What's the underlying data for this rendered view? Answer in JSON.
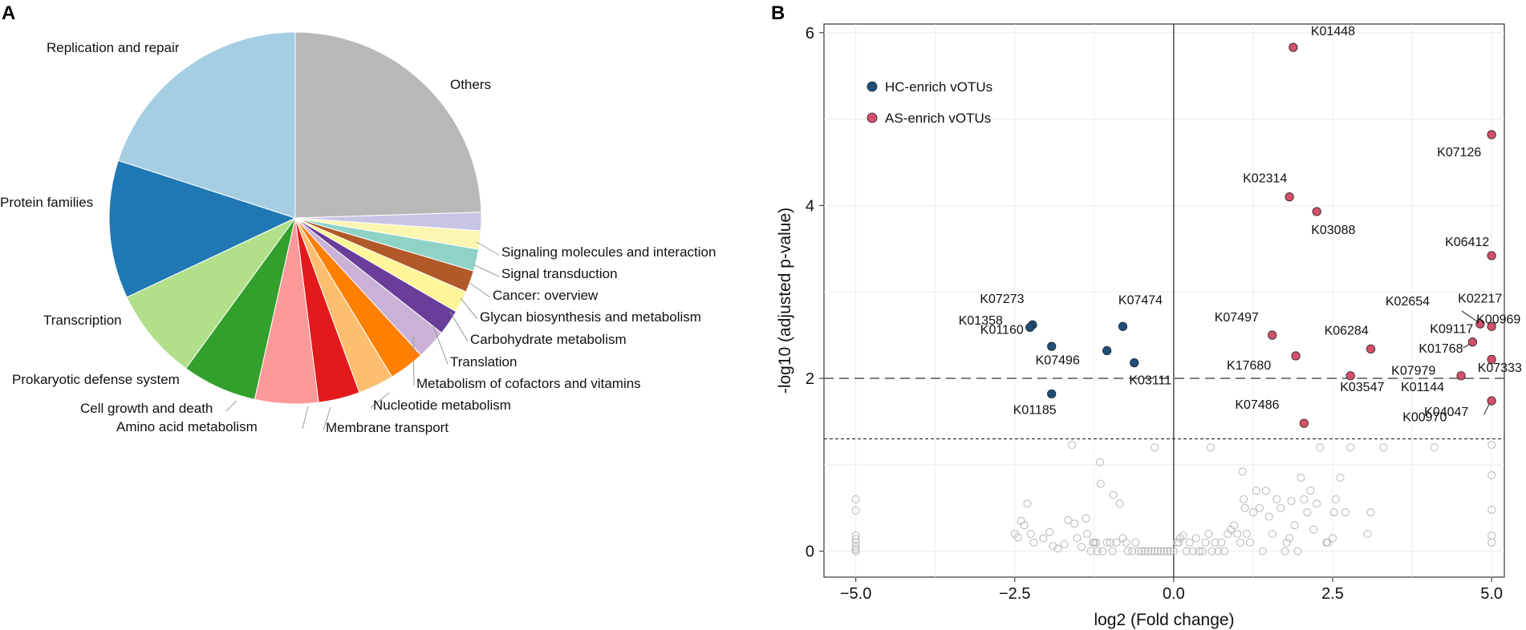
{
  "panel_a_letter": "A",
  "panel_b_letter": "B",
  "chart_data": [
    {
      "type": "pie",
      "panel": "A",
      "slices": [
        {
          "label": "Others",
          "value": 24.5,
          "color": "#b8b8b8"
        },
        {
          "label": "Signaling molecules and interaction",
          "value": 1.6,
          "color": "#c8c4e4"
        },
        {
          "label": "Signal transduction",
          "value": 1.6,
          "color": "#fbf6b0"
        },
        {
          "label": "Cancer: overview",
          "value": 1.9,
          "color": "#8fd3c7"
        },
        {
          "label": "Glycan biosynthesis and metabolism",
          "value": 1.9,
          "color": "#b15928"
        },
        {
          "label": "Carbohydrate metabolism",
          "value": 1.9,
          "color": "#fff599"
        },
        {
          "label": "Translation",
          "value": 2.2,
          "color": "#6a3d9a"
        },
        {
          "label": "Metabolism of cofactors and vitamins",
          "value": 2.6,
          "color": "#cab2d6"
        },
        {
          "label": "Nucleotide metabolism",
          "value": 3.1,
          "color": "#ff7f00"
        },
        {
          "label": "Membrane transport",
          "value": 3.1,
          "color": "#fdbf6f"
        },
        {
          "label": "Amino acid metabolism",
          "value": 3.6,
          "color": "#e31a1c"
        },
        {
          "label": "Cell growth and death",
          "value": 5.5,
          "color": "#fb9a99"
        },
        {
          "label": "Prokaryotic defense system",
          "value": 6.5,
          "color": "#33a02c"
        },
        {
          "label": "Transcription",
          "value": 8.0,
          "color": "#b2df8a"
        },
        {
          "label": "Protein families",
          "value": 12.0,
          "color": "#1f78b4"
        },
        {
          "label": "Replication and repair",
          "value": 20.0,
          "color": "#a6cee3"
        }
      ]
    },
    {
      "type": "scatter",
      "panel": "B",
      "xlabel": "log2 (Fold change)",
      "ylabel": "-log10 (adjusted p-value)",
      "xlim": [
        -5.5,
        5.2
      ],
      "ylim": [
        -0.3,
        6.1
      ],
      "xticks": [
        -5.0,
        -2.5,
        0.0,
        2.5,
        5.0
      ],
      "xtick_labels": [
        "−5.0",
        "−2.5",
        "0.0",
        "2.5",
        "5.0"
      ],
      "yticks": [
        0,
        2,
        4,
        6
      ],
      "ytick_labels": [
        "0",
        "2",
        "4",
        "6"
      ],
      "hlines": [
        {
          "y": 2.0,
          "style": "long-dash"
        },
        {
          "y": 1.3,
          "style": "short-dash"
        }
      ],
      "vline": 0,
      "legend": [
        {
          "label": "HC-enrich vOTUs",
          "color": "#1f4e79"
        },
        {
          "label": "AS-enrich vOTUs",
          "color": "#d4506a"
        }
      ],
      "hc_points": [
        {
          "id": "K07273",
          "x": -2.22,
          "y": 2.62
        },
        {
          "id": "K01160",
          "x": -2.26,
          "y": 2.59
        },
        {
          "id": "K01358",
          "x": -1.92,
          "y": 2.37
        },
        {
          "id": "K07474",
          "x": -0.8,
          "y": 2.6
        },
        {
          "id": "K07496",
          "x": -1.05,
          "y": 2.32
        },
        {
          "id": "K03111",
          "x": -0.62,
          "y": 2.18
        },
        {
          "id": "K01185",
          "x": -1.92,
          "y": 1.82
        }
      ],
      "as_points": [
        {
          "id": "K01448",
          "x": 1.88,
          "y": 5.83
        },
        {
          "id": "K07126",
          "x": 5.0,
          "y": 4.82
        },
        {
          "id": "K02314",
          "x": 1.82,
          "y": 4.1
        },
        {
          "id": "K03088",
          "x": 2.25,
          "y": 3.93
        },
        {
          "id": "K06412",
          "x": 5.0,
          "y": 3.42
        },
        {
          "id": "K02654",
          "x": 4.82,
          "y": 2.63
        },
        {
          "id": "K02217",
          "x": 5.0,
          "y": 2.6
        },
        {
          "id": "K07497",
          "x": 1.55,
          "y": 2.5
        },
        {
          "id": "K06284",
          "x": 3.1,
          "y": 2.34
        },
        {
          "id": "K01768",
          "x": 4.7,
          "y": 2.42
        },
        {
          "id": "K17680",
          "x": 1.92,
          "y": 2.26
        },
        {
          "id": "K07979",
          "x": 5.0,
          "y": 2.22
        },
        {
          "id": "K03547",
          "x": 2.78,
          "y": 2.03
        },
        {
          "id": "K01144",
          "x": 4.52,
          "y": 2.03
        },
        {
          "id": "K04047",
          "x": 5.0,
          "y": 1.74
        },
        {
          "id": "K07486",
          "x": 2.05,
          "y": 1.48
        }
      ],
      "callout_only_labels": [
        "K09117",
        "K00969",
        "K07333",
        "K00970"
      ],
      "nonsig_points": [
        [
          -5,
          0.6
        ],
        [
          -5,
          0.47
        ],
        [
          -5,
          0.18
        ],
        [
          -5,
          0.14
        ],
        [
          -5,
          0.1
        ],
        [
          -5,
          0.05
        ],
        [
          -5,
          0.02
        ],
        [
          -5,
          0.0
        ],
        [
          -2.5,
          0.2
        ],
        [
          -2.45,
          0.16
        ],
        [
          -2.4,
          0.35
        ],
        [
          -2.35,
          0.3
        ],
        [
          -2.3,
          0.55
        ],
        [
          -2.25,
          0.2
        ],
        [
          -2.2,
          0.1
        ],
        [
          -2.05,
          0.15
        ],
        [
          -1.95,
          0.22
        ],
        [
          -1.9,
          0.06
        ],
        [
          -1.82,
          0.03
        ],
        [
          -1.72,
          0.08
        ],
        [
          -1.66,
          0.36
        ],
        [
          -1.6,
          1.23
        ],
        [
          -1.56,
          0.32
        ],
        [
          -1.52,
          0.15
        ],
        [
          -1.45,
          0.05
        ],
        [
          -1.38,
          0.38
        ],
        [
          -1.36,
          0.2
        ],
        [
          -1.3,
          0.0
        ],
        [
          -1.27,
          0.1
        ],
        [
          -1.25,
          0.1
        ],
        [
          -1.22,
          0.1
        ],
        [
          -1.2,
          0.0
        ],
        [
          -1.16,
          1.03
        ],
        [
          -1.15,
          0.78
        ],
        [
          -1.12,
          0.0
        ],
        [
          -1.05,
          0.1
        ],
        [
          -1.0,
          0.1
        ],
        [
          -0.96,
          0.0
        ],
        [
          -0.9,
          0.1
        ],
        [
          -0.85,
          0.55
        ],
        [
          -0.8,
          0.15
        ],
        [
          -0.75,
          0.1
        ],
        [
          -0.72,
          0.0
        ],
        [
          -0.65,
          0.0
        ],
        [
          -0.6,
          0.1
        ],
        [
          -0.55,
          0.0
        ],
        [
          -0.5,
          0.0
        ],
        [
          -0.45,
          0.0
        ],
        [
          -0.4,
          0.0
        ],
        [
          -0.35,
          0.0
        ],
        [
          -0.3,
          0.0
        ],
        [
          -0.25,
          0.0
        ],
        [
          -0.2,
          0.0
        ],
        [
          -0.15,
          0.0
        ],
        [
          -0.1,
          0.0
        ],
        [
          -0.05,
          0.0
        ],
        [
          0.0,
          0.0
        ],
        [
          0.05,
          0.1
        ],
        [
          0.1,
          0.15
        ],
        [
          0.15,
          0.18
        ],
        [
          0.2,
          0.0
        ],
        [
          0.25,
          0.1
        ],
        [
          0.3,
          0.0
        ],
        [
          0.35,
          0.15
        ],
        [
          0.4,
          0.0
        ],
        [
          0.45,
          0.0
        ],
        [
          0.5,
          0.1
        ],
        [
          0.55,
          0.2
        ],
        [
          0.6,
          0.0
        ],
        [
          0.65,
          0.1
        ],
        [
          0.7,
          0.0
        ],
        [
          0.75,
          0.1
        ],
        [
          0.8,
          0.0
        ],
        [
          0.85,
          0.2
        ],
        [
          0.9,
          0.25
        ],
        [
          0.95,
          0.3
        ],
        [
          1.0,
          0.2
        ],
        [
          1.05,
          0.1
        ],
        [
          1.08,
          0.92
        ],
        [
          1.1,
          0.6
        ],
        [
          1.12,
          0.5
        ],
        [
          1.15,
          0.2
        ],
        [
          1.2,
          0.1
        ],
        [
          1.25,
          0.45
        ],
        [
          1.3,
          0.7
        ],
        [
          1.35,
          0.5
        ],
        [
          1.4,
          0.0
        ],
        [
          1.45,
          0.7
        ],
        [
          1.5,
          0.4
        ],
        [
          1.55,
          0.2
        ],
        [
          1.62,
          0.6
        ],
        [
          1.68,
          0.5
        ],
        [
          1.75,
          0.0
        ],
        [
          1.78,
          0.1
        ],
        [
          1.82,
          0.15
        ],
        [
          1.85,
          0.58
        ],
        [
          1.9,
          0.3
        ],
        [
          1.95,
          0.0
        ],
        [
          2.0,
          0.85
        ],
        [
          2.05,
          0.6
        ],
        [
          2.1,
          0.45
        ],
        [
          2.15,
          0.7
        ],
        [
          2.2,
          0.25
        ],
        [
          2.25,
          0.55
        ],
        [
          2.3,
          1.2
        ],
        [
          2.4,
          0.1
        ],
        [
          2.5,
          0.15
        ],
        [
          2.52,
          0.45
        ],
        [
          2.55,
          0.6
        ],
        [
          2.62,
          0.85
        ],
        [
          2.7,
          0.45
        ],
        [
          2.78,
          1.2
        ],
        [
          3.05,
          0.2
        ],
        [
          3.1,
          0.45
        ],
        [
          3.3,
          1.2
        ],
        [
          4.1,
          1.2
        ],
        [
          5.0,
          1.23
        ],
        [
          5.0,
          0.88
        ],
        [
          5.0,
          0.48
        ],
        [
          5.0,
          0.18
        ],
        [
          5.0,
          0.1
        ],
        [
          0.08,
          0.1
        ],
        [
          -0.3,
          1.2
        ],
        [
          -0.95,
          0.65
        ],
        [
          0.58,
          1.2
        ],
        [
          0.4,
          0.0
        ],
        [
          2.42,
          0.1
        ]
      ]
    }
  ]
}
